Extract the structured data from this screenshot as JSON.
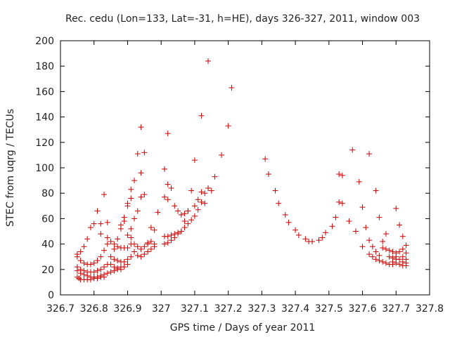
{
  "chart_data": {
    "type": "scatter",
    "title": "Rec. cedu (Lon=133, Lat=-31, h=HE), days 326-327, 2011, window 003",
    "xlabel": "GPS time / Days of year 2011",
    "ylabel": "STEC from uqrg / TECUs",
    "xlim": [
      326.7,
      327.8
    ],
    "ylim": [
      0,
      200
    ],
    "xticks": [
      326.7,
      326.8,
      326.9,
      327,
      327.1,
      327.2,
      327.3,
      327.4,
      327.5,
      327.6,
      327.7,
      327.8
    ],
    "xtick_labels": [
      "326.7",
      "326.8",
      "326.9",
      "327",
      "327.1",
      "327.2",
      "327.3",
      "327.4",
      "327.5",
      "327.6",
      "327.7",
      "327.8"
    ],
    "yticks": [
      0,
      20,
      40,
      60,
      80,
      100,
      120,
      140,
      160,
      180,
      200
    ],
    "ytick_labels": [
      "0",
      "20",
      "40",
      "60",
      "80",
      "100",
      "120",
      "140",
      "160",
      "180",
      "200"
    ],
    "grid": false,
    "marker": "+",
    "color": "#cc0000",
    "series": [
      {
        "points": [
          [
            326.75,
            14
          ],
          [
            326.755,
            13
          ],
          [
            326.76,
            12
          ],
          [
            326.77,
            12
          ],
          [
            326.78,
            12
          ],
          [
            326.79,
            12
          ],
          [
            326.8,
            13
          ],
          [
            326.81,
            13
          ],
          [
            326.82,
            14
          ],
          [
            326.83,
            14
          ],
          [
            326.75,
            19
          ],
          [
            326.76,
            17
          ],
          [
            326.77,
            16
          ],
          [
            326.78,
            15
          ],
          [
            326.79,
            14
          ],
          [
            326.8,
            14
          ],
          [
            326.81,
            14
          ],
          [
            326.82,
            15
          ],
          [
            326.83,
            16
          ],
          [
            326.84,
            17
          ],
          [
            326.75,
            22
          ],
          [
            326.76,
            20
          ],
          [
            326.77,
            19
          ],
          [
            326.78,
            18
          ],
          [
            326.79,
            18
          ],
          [
            326.8,
            18
          ],
          [
            326.81,
            19
          ],
          [
            326.82,
            20
          ],
          [
            326.83,
            22
          ],
          [
            326.84,
            24
          ],
          [
            326.75,
            30
          ],
          [
            326.76,
            27
          ],
          [
            326.77,
            25
          ],
          [
            326.78,
            24
          ],
          [
            326.79,
            24
          ],
          [
            326.8,
            25
          ],
          [
            326.81,
            27
          ],
          [
            326.82,
            30
          ],
          [
            326.83,
            35
          ],
          [
            326.84,
            40
          ],
          [
            326.75,
            32
          ],
          [
            326.76,
            34
          ],
          [
            326.77,
            38
          ],
          [
            326.78,
            44
          ],
          [
            326.79,
            53
          ],
          [
            326.8,
            56
          ],
          [
            326.81,
            66
          ],
          [
            326.82,
            56
          ],
          [
            326.83,
            79
          ],
          [
            326.84,
            57
          ],
          [
            326.82,
            48
          ],
          [
            326.84,
            45
          ],
          [
            326.85,
            42
          ],
          [
            326.86,
            40
          ],
          [
            326.87,
            38
          ],
          [
            326.88,
            37
          ],
          [
            326.89,
            37
          ],
          [
            326.9,
            37
          ],
          [
            326.85,
            30
          ],
          [
            326.86,
            28
          ],
          [
            326.87,
            27
          ],
          [
            326.88,
            26
          ],
          [
            326.89,
            26
          ],
          [
            326.9,
            28
          ],
          [
            326.91,
            30
          ],
          [
            326.85,
            24
          ],
          [
            326.86,
            22
          ],
          [
            326.87,
            21
          ],
          [
            326.88,
            20
          ],
          [
            326.89,
            22
          ],
          [
            326.9,
            24
          ],
          [
            326.85,
            18
          ],
          [
            326.86,
            19
          ],
          [
            326.87,
            20
          ],
          [
            326.88,
            22
          ],
          [
            326.86,
            36
          ],
          [
            326.87,
            44
          ],
          [
            326.88,
            52
          ],
          [
            326.89,
            58
          ],
          [
            326.9,
            70
          ],
          [
            326.91,
            76
          ],
          [
            326.88,
            55
          ],
          [
            326.89,
            61
          ],
          [
            326.9,
            72
          ],
          [
            326.91,
            83
          ],
          [
            326.92,
            90
          ],
          [
            326.93,
            111
          ],
          [
            326.94,
            132
          ],
          [
            326.95,
            112
          ],
          [
            326.9,
            47
          ],
          [
            326.91,
            52
          ],
          [
            326.92,
            60
          ],
          [
            326.93,
            66
          ],
          [
            326.94,
            77
          ],
          [
            326.95,
            79
          ],
          [
            326.94,
            96
          ],
          [
            326.91,
            40
          ],
          [
            326.92,
            34
          ],
          [
            326.93,
            31
          ],
          [
            326.94,
            30
          ],
          [
            326.95,
            32
          ],
          [
            326.96,
            34
          ],
          [
            326.97,
            36
          ],
          [
            326.98,
            38
          ],
          [
            326.91,
            45
          ],
          [
            326.92,
            40
          ],
          [
            326.93,
            38
          ],
          [
            326.94,
            36
          ],
          [
            326.95,
            38
          ],
          [
            326.96,
            40
          ],
          [
            326.97,
            42
          ],
          [
            326.98,
            40
          ],
          [
            326.96,
            41
          ],
          [
            326.97,
            53
          ],
          [
            326.98,
            51
          ],
          [
            326.99,
            65
          ],
          [
            327.01,
            99
          ],
          [
            327.02,
            87
          ],
          [
            327.03,
            84
          ],
          [
            327.04,
            70
          ],
          [
            327.05,
            66
          ],
          [
            327.06,
            63
          ],
          [
            327.07,
            64
          ],
          [
            327.08,
            66
          ],
          [
            327.09,
            82
          ],
          [
            327.02,
            127
          ],
          [
            327.01,
            77
          ],
          [
            327.02,
            75
          ],
          [
            327.01,
            40
          ],
          [
            327.02,
            41
          ],
          [
            327.03,
            43
          ],
          [
            327.04,
            45
          ],
          [
            327.05,
            48
          ],
          [
            327.06,
            50
          ],
          [
            327.07,
            53
          ],
          [
            327.08,
            56
          ],
          [
            327.09,
            59
          ],
          [
            327.01,
            46
          ],
          [
            327.02,
            46
          ],
          [
            327.03,
            47
          ],
          [
            327.04,
            48
          ],
          [
            327.05,
            49
          ],
          [
            327.06,
            50
          ],
          [
            327.07,
            58
          ],
          [
            327.08,
            66
          ],
          [
            327.1,
            62
          ],
          [
            327.11,
            67
          ],
          [
            327.12,
            73
          ],
          [
            327.13,
            80
          ],
          [
            327.14,
            84
          ],
          [
            327.15,
            82
          ],
          [
            327.1,
            106
          ],
          [
            327.12,
            141
          ],
          [
            327.14,
            184
          ],
          [
            327.16,
            93
          ],
          [
            327.18,
            110
          ],
          [
            327.2,
            133
          ],
          [
            327.21,
            163
          ],
          [
            327.1,
            70
          ],
          [
            327.11,
            75
          ],
          [
            327.12,
            81
          ],
          [
            327.13,
            72
          ],
          [
            327.31,
            107
          ],
          [
            327.32,
            95
          ],
          [
            327.34,
            82
          ],
          [
            327.35,
            72
          ],
          [
            327.37,
            63
          ],
          [
            327.38,
            57
          ],
          [
            327.4,
            51
          ],
          [
            327.41,
            47
          ],
          [
            327.43,
            44
          ],
          [
            327.44,
            42
          ],
          [
            327.45,
            42
          ],
          [
            327.47,
            43
          ],
          [
            327.48,
            45
          ],
          [
            327.49,
            49
          ],
          [
            327.51,
            54
          ],
          [
            327.52,
            61
          ],
          [
            327.53,
            73
          ],
          [
            327.54,
            72
          ],
          [
            327.53,
            95
          ],
          [
            327.54,
            94
          ],
          [
            327.56,
            58
          ],
          [
            327.57,
            114
          ],
          [
            327.58,
            50
          ],
          [
            327.59,
            89
          ],
          [
            327.6,
            69
          ],
          [
            327.6,
            38
          ],
          [
            327.61,
            53
          ],
          [
            327.62,
            111
          ],
          [
            327.62,
            43
          ],
          [
            327.63,
            38
          ],
          [
            327.64,
            82
          ],
          [
            327.64,
            34
          ],
          [
            327.65,
            31
          ],
          [
            327.65,
            61
          ],
          [
            327.66,
            42
          ],
          [
            327.67,
            48
          ],
          [
            327.62,
            32
          ],
          [
            327.63,
            30
          ],
          [
            327.64,
            28
          ],
          [
            327.65,
            27
          ],
          [
            327.66,
            26
          ],
          [
            327.67,
            25
          ],
          [
            327.68,
            24
          ],
          [
            327.69,
            24
          ],
          [
            327.66,
            37
          ],
          [
            327.67,
            36
          ],
          [
            327.68,
            35
          ],
          [
            327.69,
            34
          ],
          [
            327.7,
            33
          ],
          [
            327.71,
            34
          ],
          [
            327.72,
            36
          ],
          [
            327.73,
            39
          ],
          [
            327.7,
            68
          ],
          [
            327.71,
            55
          ],
          [
            327.72,
            46
          ],
          [
            327.7,
            30
          ],
          [
            327.71,
            28
          ],
          [
            327.72,
            26
          ],
          [
            327.73,
            25
          ],
          [
            327.69,
            26
          ],
          [
            327.7,
            25
          ],
          [
            327.71,
            24
          ],
          [
            327.72,
            23
          ],
          [
            327.73,
            23
          ],
          [
            327.68,
            30
          ],
          [
            327.69,
            29
          ],
          [
            327.7,
            28
          ],
          [
            327.73,
            28
          ],
          [
            327.72,
            30
          ],
          [
            327.73,
            33
          ]
        ]
      }
    ]
  }
}
